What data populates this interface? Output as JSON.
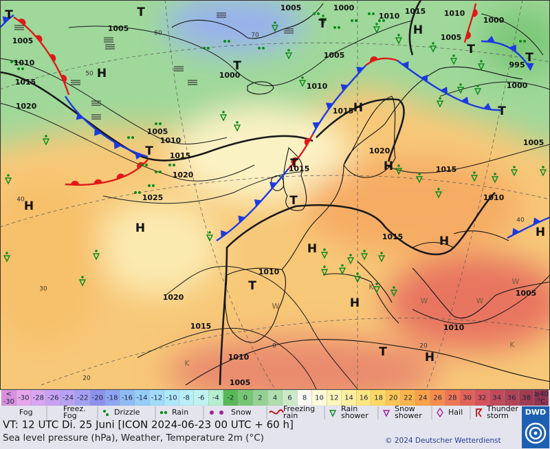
{
  "map": {
    "isobar_labels": [
      "1005",
      "1005",
      "1010",
      "1015",
      "1020",
      "1005",
      "1010",
      "1015",
      "1020",
      "1025",
      "1000",
      "1005",
      "1010",
      "1015",
      "1020",
      "1015",
      "1015",
      "1010",
      "1005",
      "1015",
      "1010",
      "1020",
      "1015",
      "1010",
      "1005",
      "1010",
      "1005",
      "1000",
      "995",
      "1000",
      "1005",
      "1010",
      "1015",
      "1010",
      "1000",
      "1005"
    ],
    "pressure_centers": [
      "H",
      "H",
      "H",
      "T",
      "T",
      "T",
      "H",
      "H",
      "T",
      "H",
      "H",
      "T",
      "H",
      "T",
      "H",
      "H",
      "T",
      "T",
      "H",
      "T",
      "T",
      "T",
      "T"
    ],
    "grid_labels": [
      "60",
      "50",
      "40",
      "30",
      "20",
      "70",
      "40",
      "20",
      "0"
    ],
    "air_mass_labels": [
      "W",
      "W",
      "W",
      "W",
      "K",
      "K",
      "K"
    ]
  },
  "legend": {
    "scale": {
      "below_label": [
        "<",
        "-30"
      ],
      "labels": [
        "-30",
        "-28",
        "-26",
        "-24",
        "-22",
        "-20",
        "-18",
        "-16",
        "-14",
        "-12",
        "-10",
        "-8",
        "-6",
        "-4",
        "-2",
        "0",
        "2",
        "4",
        "6",
        "8",
        "10",
        "12",
        "14",
        "16",
        "18",
        "20",
        "22",
        "24",
        "26",
        "28",
        "30",
        "32",
        "34",
        "36",
        "38"
      ],
      "above_label": [
        "≥40",
        "°C"
      ],
      "colors": [
        "#d890dc",
        "#e6a6ea",
        "#d8a6f0",
        "#c8a2f2",
        "#b8a2f2",
        "#a4a0f2",
        "#8e90ee",
        "#8ea6f2",
        "#90bcf6",
        "#96cef8",
        "#a2dcfa",
        "#aee6fa",
        "#b8eef8",
        "#c2f2f0",
        "#b6eed0",
        "#58b858",
        "#76c676",
        "#94d294",
        "#b0deae",
        "#cceac8",
        "#fbfbf4",
        "#fffbd8",
        "#fff6b8",
        "#fff0a0",
        "#ffe680",
        "#ffd866",
        "#fdc656",
        "#fcb44a",
        "#f9a048",
        "#f58c4c",
        "#ee7652",
        "#e26258",
        "#d4545c",
        "#c24a5c",
        "#b04456",
        "#a03c50",
        "#903450"
      ]
    },
    "weather": [
      {
        "lines": [
          "Fog"
        ]
      },
      {
        "lines": [
          "Freez.",
          "Fog"
        ]
      },
      {
        "lines": [
          "Drizzle"
        ]
      },
      {
        "lines": [
          "Rain"
        ]
      },
      {
        "lines": [
          "Snow"
        ]
      },
      {
        "lines": [
          "Freezing",
          "rain"
        ]
      },
      {
        "lines": [
          "Rain",
          "shower"
        ]
      },
      {
        "lines": [
          "Snow",
          "shower"
        ]
      },
      {
        "lines": [
          "Hail"
        ]
      },
      {
        "lines": [
          "Thunder",
          "storm"
        ]
      }
    ]
  },
  "footer": {
    "valid_time": "VT: 12 UTC Di.  25 Juni [ICON 2024-06-23  00 UTC + 60 h]",
    "description": "Sea level pressure (hPa), Weather, Temperature 2m (°C)",
    "copyright": "© 2024 Deutscher Wetterdienst",
    "logo": "DWD"
  }
}
